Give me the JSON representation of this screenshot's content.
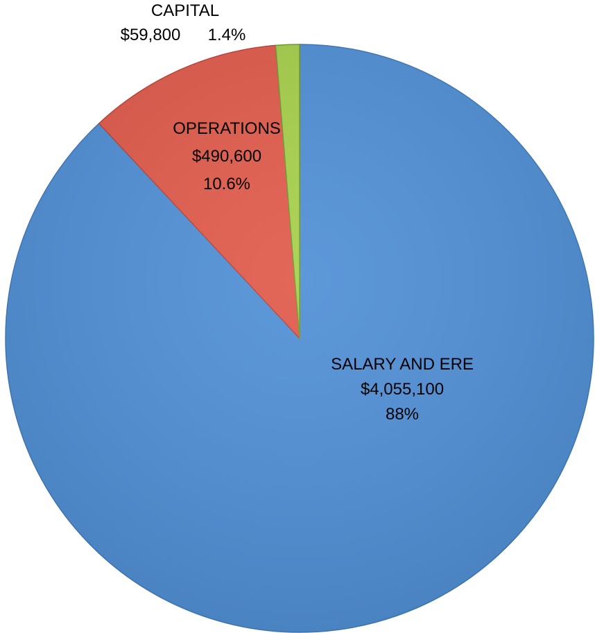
{
  "chart_data": {
    "type": "pie",
    "title": "",
    "start_angle_deg": 0,
    "direction": "clockwise",
    "slices": [
      {
        "category": "SALARY AND ERE",
        "value": 4055100,
        "value_label": "$4,055,100",
        "percent": 88,
        "percent_label": "88%",
        "color": "#4f8fd6",
        "edge_color": "#3f78b8"
      },
      {
        "category": "OPERATIONS",
        "value": 490600,
        "value_label": "$490,600",
        "percent": 10.6,
        "percent_label": "10.6%",
        "color": "#e15a4a",
        "edge_color": "#b94437"
      },
      {
        "category": "CAPITAL",
        "value": 59800,
        "value_label": "$59,800",
        "percent": 1.4,
        "percent_label": "1.4%",
        "color": "#a6d04a",
        "edge_color": "#6e9a2c"
      }
    ],
    "legend": "none"
  }
}
